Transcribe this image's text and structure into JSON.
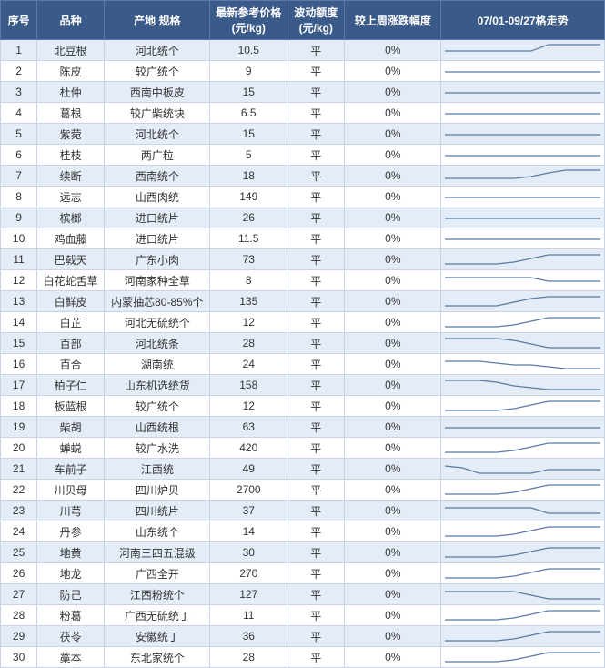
{
  "header": {
    "idx": "序号",
    "name": "品种",
    "spec": "产地 规格",
    "price": "最新参考价格\n(元/kg)",
    "flux": "波动额度\n(元/kg)",
    "pct": "较上周涨跌幅度",
    "spark": "07/01-09/27格走势"
  },
  "colors": {
    "header_bg": "#3a5a8a",
    "header_fg": "#ffffff",
    "row_odd_bg": "#e4ecf7",
    "row_even_bg": "#ffffff",
    "border": "#c8d4e4",
    "spark_stroke": "#5a7aa8"
  },
  "rows": [
    {
      "idx": 1,
      "name": "北豆根",
      "spec": "河北统个",
      "price": "10.5",
      "flux": "平",
      "pct": "0%",
      "spark": [
        10,
        10,
        10,
        10,
        10,
        10,
        3,
        3,
        3,
        3
      ]
    },
    {
      "idx": 2,
      "name": "陈皮",
      "spec": "较广统个",
      "price": "9",
      "flux": "平",
      "pct": "0%",
      "spark": [
        10,
        10,
        10,
        10,
        10,
        10,
        10,
        10,
        10,
        10
      ]
    },
    {
      "idx": 3,
      "name": "杜仲",
      "spec": "西南中板皮",
      "price": "15",
      "flux": "平",
      "pct": "0%",
      "spark": [
        10,
        10,
        10,
        10,
        10,
        10,
        10,
        10,
        10,
        10
      ]
    },
    {
      "idx": 4,
      "name": "葛根",
      "spec": "较广柴统块",
      "price": "6.5",
      "flux": "平",
      "pct": "0%",
      "spark": [
        10,
        10,
        10,
        10,
        10,
        10,
        10,
        10,
        10,
        10
      ]
    },
    {
      "idx": 5,
      "name": "紫菀",
      "spec": "河北统个",
      "price": "15",
      "flux": "平",
      "pct": "0%",
      "spark": [
        10,
        10,
        10,
        10,
        10,
        10,
        10,
        10,
        10,
        10
      ]
    },
    {
      "idx": 6,
      "name": "桂枝",
      "spec": "两广粒",
      "price": "5",
      "flux": "平",
      "pct": "0%",
      "spark": [
        10,
        10,
        10,
        10,
        10,
        10,
        10,
        10,
        10,
        10
      ]
    },
    {
      "idx": 7,
      "name": "续断",
      "spec": "西南统个",
      "price": "18",
      "flux": "平",
      "pct": "0%",
      "spark": [
        12,
        12,
        12,
        12,
        12,
        10,
        6,
        3,
        3,
        3
      ]
    },
    {
      "idx": 8,
      "name": "远志",
      "spec": "山西肉统",
      "price": "149",
      "flux": "平",
      "pct": "0%",
      "spark": [
        10,
        10,
        10,
        10,
        10,
        10,
        10,
        10,
        10,
        10
      ]
    },
    {
      "idx": 9,
      "name": "槟榔",
      "spec": "进口统片",
      "price": "26",
      "flux": "平",
      "pct": "0%",
      "spark": [
        10,
        10,
        10,
        10,
        10,
        10,
        10,
        10,
        10,
        10
      ]
    },
    {
      "idx": 10,
      "name": "鸡血藤",
      "spec": "进口统片",
      "price": "11.5",
      "flux": "平",
      "pct": "0%",
      "spark": [
        10,
        10,
        10,
        10,
        10,
        10,
        10,
        10,
        10,
        10
      ]
    },
    {
      "idx": 11,
      "name": "巴戟天",
      "spec": "广东小肉",
      "price": "73",
      "flux": "平",
      "pct": "0%",
      "spark": [
        14,
        14,
        14,
        14,
        12,
        8,
        4,
        4,
        4,
        4
      ]
    },
    {
      "idx": 12,
      "name": "白花蛇舌草",
      "spec": "河南家种全草",
      "price": "8",
      "flux": "平",
      "pct": "0%",
      "spark": [
        6,
        6,
        6,
        6,
        6,
        6,
        10,
        10,
        10,
        10
      ]
    },
    {
      "idx": 13,
      "name": "白鲜皮",
      "spec": "内蒙抽芯80-85%个",
      "price": "135",
      "flux": "平",
      "pct": "0%",
      "spark": [
        14,
        14,
        14,
        14,
        10,
        6,
        4,
        4,
        4,
        4
      ]
    },
    {
      "idx": 14,
      "name": "白芷",
      "spec": "河北无硫统个",
      "price": "12",
      "flux": "平",
      "pct": "0%",
      "spark": [
        14,
        14,
        14,
        14,
        12,
        8,
        4,
        4,
        4,
        4
      ]
    },
    {
      "idx": 15,
      "name": "百部",
      "spec": "河北统条",
      "price": "28",
      "flux": "平",
      "pct": "0%",
      "spark": [
        4,
        4,
        4,
        4,
        6,
        10,
        14,
        14,
        14,
        14
      ]
    },
    {
      "idx": 16,
      "name": "百合",
      "spec": "湖南统",
      "price": "24",
      "flux": "平",
      "pct": "0%",
      "spark": [
        6,
        6,
        6,
        8,
        10,
        10,
        12,
        14,
        14,
        14
      ]
    },
    {
      "idx": 17,
      "name": "柏子仁",
      "spec": "山东机选统货",
      "price": "158",
      "flux": "平",
      "pct": "0%",
      "spark": [
        4,
        4,
        4,
        6,
        10,
        12,
        14,
        14,
        14,
        14
      ]
    },
    {
      "idx": 18,
      "name": "板蓝根",
      "spec": "较广统个",
      "price": "12",
      "flux": "平",
      "pct": "0%",
      "spark": [
        14,
        14,
        14,
        14,
        12,
        8,
        4,
        4,
        4,
        4
      ]
    },
    {
      "idx": 19,
      "name": "柴胡",
      "spec": "山西统根",
      "price": "63",
      "flux": "平",
      "pct": "0%",
      "spark": [
        10,
        10,
        10,
        10,
        10,
        10,
        10,
        10,
        10,
        10
      ]
    },
    {
      "idx": 20,
      "name": "蝉蜕",
      "spec": "较广水洗",
      "price": "420",
      "flux": "平",
      "pct": "0%",
      "spark": [
        14,
        14,
        14,
        14,
        12,
        8,
        4,
        4,
        4,
        4
      ]
    },
    {
      "idx": 21,
      "name": "车前子",
      "spec": "江西统",
      "price": "49",
      "flux": "平",
      "pct": "0%",
      "spark": [
        6,
        8,
        14,
        14,
        14,
        14,
        10,
        10,
        10,
        10
      ]
    },
    {
      "idx": 22,
      "name": "川贝母",
      "spec": "四川炉贝",
      "price": "2700",
      "flux": "平",
      "pct": "0%",
      "spark": [
        14,
        14,
        14,
        14,
        12,
        8,
        4,
        4,
        4,
        4
      ]
    },
    {
      "idx": 23,
      "name": "川芎",
      "spec": "四川统片",
      "price": "37",
      "flux": "平",
      "pct": "0%",
      "spark": [
        6,
        6,
        6,
        6,
        6,
        6,
        12,
        12,
        12,
        12
      ]
    },
    {
      "idx": 24,
      "name": "丹参",
      "spec": "山东统个",
      "price": "14",
      "flux": "平",
      "pct": "0%",
      "spark": [
        14,
        14,
        14,
        14,
        12,
        8,
        4,
        4,
        4,
        4
      ]
    },
    {
      "idx": 25,
      "name": "地黄",
      "spec": "河南三四五混级",
      "price": "30",
      "flux": "平",
      "pct": "0%",
      "spark": [
        14,
        14,
        14,
        14,
        12,
        8,
        4,
        4,
        4,
        4
      ]
    },
    {
      "idx": 26,
      "name": "地龙",
      "spec": "广西全开",
      "price": "270",
      "flux": "平",
      "pct": "0%",
      "spark": [
        14,
        14,
        14,
        14,
        12,
        8,
        4,
        4,
        4,
        4
      ]
    },
    {
      "idx": 27,
      "name": "防己",
      "spec": "江西粉统个",
      "price": "127",
      "flux": "平",
      "pct": "0%",
      "spark": [
        6,
        6,
        6,
        6,
        6,
        10,
        14,
        14,
        14,
        14
      ]
    },
    {
      "idx": 28,
      "name": "粉葛",
      "spec": "广西无硫统丁",
      "price": "11",
      "flux": "平",
      "pct": "0%",
      "spark": [
        14,
        14,
        14,
        14,
        12,
        8,
        4,
        4,
        4,
        4
      ]
    },
    {
      "idx": 29,
      "name": "茯苓",
      "spec": "安徽统丁",
      "price": "36",
      "flux": "平",
      "pct": "0%",
      "spark": [
        14,
        14,
        14,
        14,
        12,
        8,
        4,
        4,
        4,
        4
      ]
    },
    {
      "idx": 30,
      "name": "藁本",
      "spec": "东北家统个",
      "price": "28",
      "flux": "平",
      "pct": "0%",
      "spark": [
        14,
        14,
        14,
        14,
        12,
        8,
        4,
        4,
        4,
        4
      ]
    }
  ],
  "spark_config": {
    "width": 160,
    "height": 18
  }
}
